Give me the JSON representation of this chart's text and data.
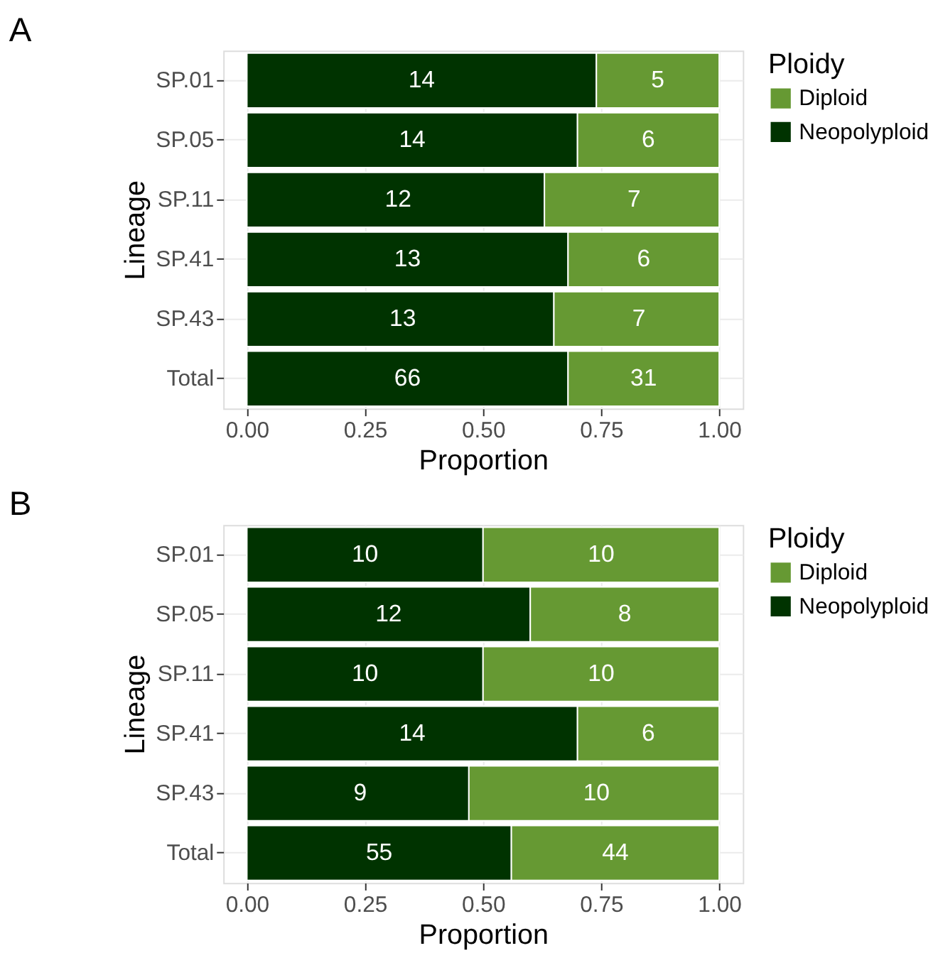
{
  "chart_data": [
    {
      "type": "bar",
      "orientation": "horizontal",
      "stacked": true,
      "title": "A",
      "xlabel": "Proportion",
      "ylabel": "Lineage",
      "legend_title": "Ploidy",
      "legend": "right",
      "grid": true,
      "categories": [
        "SP.01",
        "SP.05",
        "SP.11",
        "SP.41",
        "SP.43",
        "Total"
      ],
      "xlim": [
        -0.05,
        1.05
      ],
      "xticks": [
        {
          "value": 0,
          "label": "0.00"
        },
        {
          "value": 0.25,
          "label": "0.25"
        },
        {
          "value": 0.5,
          "label": "0.50"
        },
        {
          "value": 0.75,
          "label": "0.75"
        },
        {
          "value": 1,
          "label": "1.00"
        }
      ],
      "series": [
        {
          "name": "Neopolyploid",
          "color": "#003300",
          "values": [
            0.74,
            0.7,
            0.63,
            0.68,
            0.65,
            0.68
          ]
        },
        {
          "name": "Diploid",
          "color": "#669933",
          "values": [
            0.26,
            0.3,
            0.37,
            0.32,
            0.35,
            0.32
          ]
        }
      ],
      "annotations": [
        {
          "text": "14",
          "x": 0.37,
          "y": "SP.01"
        },
        {
          "text": "5",
          "x": 0.87,
          "y": "SP.01"
        },
        {
          "text": "14",
          "x": 0.35,
          "y": "SP.05"
        },
        {
          "text": "6",
          "x": 0.85,
          "y": "SP.05"
        },
        {
          "text": "12",
          "x": 0.32,
          "y": "SP.11"
        },
        {
          "text": "7",
          "x": 0.82,
          "y": "SP.11"
        },
        {
          "text": "13",
          "x": 0.34,
          "y": "SP.41"
        },
        {
          "text": "6",
          "x": 0.84,
          "y": "SP.41"
        },
        {
          "text": "13",
          "x": 0.33,
          "y": "SP.43"
        },
        {
          "text": "7",
          "x": 0.83,
          "y": "SP.43"
        },
        {
          "text": "66",
          "x": 0.34,
          "y": "Total"
        },
        {
          "text": "31",
          "x": 0.84,
          "y": "Total"
        }
      ]
    },
    {
      "type": "bar",
      "orientation": "horizontal",
      "stacked": true,
      "title": "B",
      "xlabel": "Proportion",
      "ylabel": "Lineage",
      "legend_title": "Ploidy",
      "legend": "right",
      "grid": true,
      "categories": [
        "SP.01",
        "SP.05",
        "SP.11",
        "SP.41",
        "SP.43",
        "Total"
      ],
      "xlim": [
        -0.05,
        1.05
      ],
      "xticks": [
        {
          "value": 0,
          "label": "0.00"
        },
        {
          "value": 0.25,
          "label": "0.25"
        },
        {
          "value": 0.5,
          "label": "0.50"
        },
        {
          "value": 0.75,
          "label": "0.75"
        },
        {
          "value": 1,
          "label": "1.00"
        }
      ],
      "series": [
        {
          "name": "Neopolyploid",
          "color": "#003300",
          "values": [
            0.5,
            0.6,
            0.5,
            0.7,
            0.47,
            0.56
          ]
        },
        {
          "name": "Diploid",
          "color": "#669933",
          "values": [
            0.5,
            0.4,
            0.5,
            0.3,
            0.53,
            0.44
          ]
        }
      ],
      "annotations": [
        {
          "text": "10",
          "x": 0.25,
          "y": "SP.01"
        },
        {
          "text": "10",
          "x": 0.75,
          "y": "SP.01"
        },
        {
          "text": "12",
          "x": 0.3,
          "y": "SP.05"
        },
        {
          "text": "8",
          "x": 0.8,
          "y": "SP.05"
        },
        {
          "text": "10",
          "x": 0.25,
          "y": "SP.11"
        },
        {
          "text": "10",
          "x": 0.75,
          "y": "SP.11"
        },
        {
          "text": "14",
          "x": 0.35,
          "y": "SP.41"
        },
        {
          "text": "6",
          "x": 0.85,
          "y": "SP.41"
        },
        {
          "text": "9",
          "x": 0.24,
          "y": "SP.43"
        },
        {
          "text": "10",
          "x": 0.74,
          "y": "SP.43"
        },
        {
          "text": "55",
          "x": 0.28,
          "y": "Total"
        },
        {
          "text": "44",
          "x": 0.78,
          "y": "Total"
        }
      ]
    }
  ]
}
